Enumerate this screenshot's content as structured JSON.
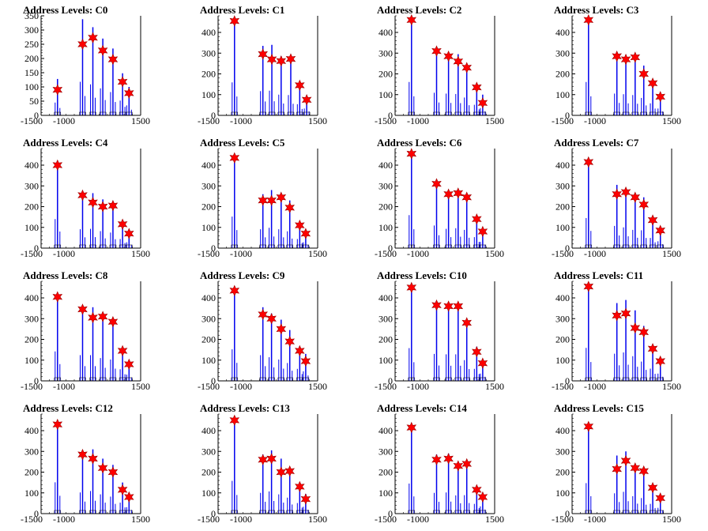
{
  "chart_data": [
    {
      "type": "bar",
      "title": "Address Levels: C0",
      "ylim": [
        0,
        350
      ],
      "yticks": [
        0,
        50,
        100,
        150,
        200,
        250,
        300,
        350
      ],
      "xlim": [
        -1500,
        1500
      ],
      "xticks": [
        -1500,
        -1000,
        1500
      ],
      "xtick_labels": [
        "-1500",
        "-1000",
        "1500"
      ],
      "peaks": [
        {
          "x": -1005,
          "y": 90,
          "h": 128
        },
        {
          "x": -250,
          "y": 250,
          "h": 338
        },
        {
          "x": 60,
          "y": 273,
          "h": 310
        },
        {
          "x": 360,
          "y": 228,
          "h": 270
        },
        {
          "x": 665,
          "y": 197,
          "h": 235
        },
        {
          "x": 955,
          "y": 118,
          "h": 148
        },
        {
          "x": 1150,
          "y": 78,
          "h": 100
        }
      ]
    },
    {
      "type": "bar",
      "title": "Address Levels: C1",
      "ylim": [
        0,
        480
      ],
      "yticks": [
        0,
        100,
        200,
        300,
        400
      ],
      "xlim": [
        -1500,
        1500
      ],
      "xticks": [
        -1500,
        -1000,
        1500
      ],
      "xtick_labels": [
        "-1500",
        "-1000",
        "1500"
      ],
      "peaks": [
        {
          "x": -1005,
          "y": 455,
          "h": 455
        },
        {
          "x": -150,
          "y": 295,
          "h": 335
        },
        {
          "x": 120,
          "y": 270,
          "h": 340
        },
        {
          "x": 400,
          "y": 262,
          "h": 285
        },
        {
          "x": 690,
          "y": 272,
          "h": 280
        },
        {
          "x": 960,
          "y": 145,
          "h": 155
        },
        {
          "x": 1170,
          "y": 75,
          "h": 95
        }
      ]
    },
    {
      "type": "bar",
      "title": "Address Levels: C2",
      "ylim": [
        0,
        480
      ],
      "yticks": [
        0,
        100,
        200,
        300,
        400
      ],
      "xlim": [
        -1500,
        1500
      ],
      "xticks": [
        -1500,
        -1000,
        1500
      ],
      "xtick_labels": [
        "-1500",
        "-1000",
        "1500"
      ],
      "peaks": [
        {
          "x": -1005,
          "y": 460,
          "h": 460
        },
        {
          "x": -250,
          "y": 310,
          "h": 310
        },
        {
          "x": 110,
          "y": 285,
          "h": 300
        },
        {
          "x": 400,
          "y": 260,
          "h": 295
        },
        {
          "x": 660,
          "y": 230,
          "h": 245
        },
        {
          "x": 960,
          "y": 135,
          "h": 145
        },
        {
          "x": 1140,
          "y": 60,
          "h": 100
        }
      ]
    },
    {
      "type": "bar",
      "title": "Address Levels: C3",
      "ylim": [
        0,
        480
      ],
      "yticks": [
        0,
        100,
        200,
        300,
        400
      ],
      "xlim": [
        -1500,
        1500
      ],
      "xticks": [
        -1500,
        -1000,
        1500
      ],
      "xtick_labels": [
        "-1500",
        "-1000",
        "1500"
      ],
      "peaks": [
        {
          "x": -1005,
          "y": 460,
          "h": 460
        },
        {
          "x": -150,
          "y": 285,
          "h": 300
        },
        {
          "x": 120,
          "y": 270,
          "h": 290
        },
        {
          "x": 400,
          "y": 280,
          "h": 280
        },
        {
          "x": 660,
          "y": 200,
          "h": 240
        },
        {
          "x": 930,
          "y": 155,
          "h": 165
        },
        {
          "x": 1160,
          "y": 90,
          "h": 95
        }
      ]
    },
    {
      "type": "bar",
      "title": "Address Levels: C4",
      "ylim": [
        0,
        480
      ],
      "yticks": [
        0,
        100,
        200,
        300,
        400
      ],
      "xlim": [
        -1500,
        1500
      ],
      "xticks": [
        -1500,
        -1000,
        1500
      ],
      "xtick_labels": [
        "-1500",
        "-1000",
        "1500"
      ],
      "peaks": [
        {
          "x": -1005,
          "y": 400,
          "h": 400
        },
        {
          "x": -250,
          "y": 255,
          "h": 260
        },
        {
          "x": 60,
          "y": 220,
          "h": 265
        },
        {
          "x": 360,
          "y": 200,
          "h": 235
        },
        {
          "x": 665,
          "y": 205,
          "h": 215
        },
        {
          "x": 955,
          "y": 115,
          "h": 125
        },
        {
          "x": 1150,
          "y": 70,
          "h": 80
        }
      ]
    },
    {
      "type": "bar",
      "title": "Address Levels: C5",
      "ylim": [
        0,
        480
      ],
      "yticks": [
        0,
        100,
        200,
        300,
        400
      ],
      "xlim": [
        -1500,
        1500
      ],
      "xticks": [
        -1500,
        -1000,
        1500
      ],
      "xtick_labels": [
        "-1500",
        "-1000",
        "1500"
      ],
      "peaks": [
        {
          "x": -1005,
          "y": 435,
          "h": 435
        },
        {
          "x": -150,
          "y": 230,
          "h": 260
        },
        {
          "x": 110,
          "y": 230,
          "h": 280
        },
        {
          "x": 400,
          "y": 245,
          "h": 260
        },
        {
          "x": 660,
          "y": 195,
          "h": 230
        },
        {
          "x": 960,
          "y": 110,
          "h": 125
        },
        {
          "x": 1140,
          "y": 70,
          "h": 80
        }
      ]
    },
    {
      "type": "bar",
      "title": "Address Levels: C6",
      "ylim": [
        0,
        480
      ],
      "yticks": [
        0,
        100,
        200,
        300,
        400
      ],
      "xlim": [
        -1500,
        1500
      ],
      "xticks": [
        -1500,
        -1000,
        1500
      ],
      "xtick_labels": [
        "-1500",
        "-1000",
        "1500"
      ],
      "peaks": [
        {
          "x": -1005,
          "y": 455,
          "h": 455
        },
        {
          "x": -250,
          "y": 310,
          "h": 310
        },
        {
          "x": 110,
          "y": 260,
          "h": 265
        },
        {
          "x": 400,
          "y": 265,
          "h": 275
        },
        {
          "x": 660,
          "y": 245,
          "h": 250
        },
        {
          "x": 960,
          "y": 140,
          "h": 150
        },
        {
          "x": 1140,
          "y": 80,
          "h": 85
        }
      ]
    },
    {
      "type": "bar",
      "title": "Address Levels: C7",
      "ylim": [
        0,
        480
      ],
      "yticks": [
        0,
        100,
        200,
        300,
        400
      ],
      "xlim": [
        -1500,
        1500
      ],
      "xticks": [
        -1500,
        -1000,
        1500
      ],
      "xtick_labels": [
        "-1500",
        "-1000",
        "1500"
      ],
      "peaks": [
        {
          "x": -1005,
          "y": 415,
          "h": 415
        },
        {
          "x": -150,
          "y": 260,
          "h": 305
        },
        {
          "x": 120,
          "y": 270,
          "h": 285
        },
        {
          "x": 400,
          "y": 245,
          "h": 250
        },
        {
          "x": 660,
          "y": 210,
          "h": 245
        },
        {
          "x": 930,
          "y": 135,
          "h": 140
        },
        {
          "x": 1160,
          "y": 85,
          "h": 95
        }
      ]
    },
    {
      "type": "bar",
      "title": "Address Levels: C8",
      "ylim": [
        0,
        480
      ],
      "yticks": [
        0,
        100,
        200,
        300,
        400
      ],
      "xlim": [
        -1500,
        1500
      ],
      "xticks": [
        -1500,
        -1000,
        1500
      ],
      "xtick_labels": [
        "-1500",
        "-1000",
        "1500"
      ],
      "peaks": [
        {
          "x": -1005,
          "y": 405,
          "h": 405
        },
        {
          "x": -250,
          "y": 345,
          "h": 355
        },
        {
          "x": 60,
          "y": 305,
          "h": 355
        },
        {
          "x": 360,
          "y": 310,
          "h": 315
        },
        {
          "x": 665,
          "y": 285,
          "h": 295
        },
        {
          "x": 955,
          "y": 145,
          "h": 160
        },
        {
          "x": 1150,
          "y": 80,
          "h": 85
        }
      ]
    },
    {
      "type": "bar",
      "title": "Address Levels: C9",
      "ylim": [
        0,
        480
      ],
      "yticks": [
        0,
        100,
        200,
        300,
        400
      ],
      "xlim": [
        -1500,
        1500
      ],
      "xticks": [
        -1500,
        -1000,
        1500
      ],
      "xtick_labels": [
        "-1500",
        "-1000",
        "1500"
      ],
      "peaks": [
        {
          "x": -1005,
          "y": 435,
          "h": 435
        },
        {
          "x": -150,
          "y": 320,
          "h": 355
        },
        {
          "x": 110,
          "y": 300,
          "h": 325
        },
        {
          "x": 400,
          "y": 250,
          "h": 295
        },
        {
          "x": 660,
          "y": 190,
          "h": 245
        },
        {
          "x": 960,
          "y": 145,
          "h": 165
        },
        {
          "x": 1140,
          "y": 95,
          "h": 130
        }
      ]
    },
    {
      "type": "bar",
      "title": "Address Levels: C10",
      "ylim": [
        0,
        480
      ],
      "yticks": [
        0,
        100,
        200,
        300,
        400
      ],
      "xlim": [
        -1500,
        1500
      ],
      "xticks": [
        -1500,
        -1000,
        1500
      ],
      "xtick_labels": [
        "-1500",
        "-1000",
        "1500"
      ],
      "peaks": [
        {
          "x": -1005,
          "y": 450,
          "h": 450
        },
        {
          "x": -250,
          "y": 365,
          "h": 370
        },
        {
          "x": 110,
          "y": 360,
          "h": 365
        },
        {
          "x": 400,
          "y": 360,
          "h": 365
        },
        {
          "x": 660,
          "y": 280,
          "h": 285
        },
        {
          "x": 960,
          "y": 140,
          "h": 165
        },
        {
          "x": 1140,
          "y": 85,
          "h": 100
        }
      ]
    },
    {
      "type": "bar",
      "title": "Address Levels: C11",
      "ylim": [
        0,
        480
      ],
      "yticks": [
        0,
        100,
        200,
        300,
        400
      ],
      "xlim": [
        -1500,
        1500
      ],
      "xticks": [
        -1500,
        -1000,
        1500
      ],
      "xtick_labels": [
        "-1500",
        "-1000",
        "1500"
      ],
      "peaks": [
        {
          "x": -1005,
          "y": 455,
          "h": 455
        },
        {
          "x": -150,
          "y": 315,
          "h": 375
        },
        {
          "x": 120,
          "y": 325,
          "h": 390
        },
        {
          "x": 400,
          "y": 255,
          "h": 340
        },
        {
          "x": 660,
          "y": 235,
          "h": 265
        },
        {
          "x": 930,
          "y": 155,
          "h": 170
        },
        {
          "x": 1160,
          "y": 95,
          "h": 100
        }
      ]
    },
    {
      "type": "bar",
      "title": "Address Levels: C12",
      "ylim": [
        0,
        480
      ],
      "yticks": [
        0,
        100,
        200,
        300,
        400
      ],
      "xlim": [
        -1500,
        1500
      ],
      "xticks": [
        -1500,
        -1000,
        1500
      ],
      "xtick_labels": [
        "-1500",
        "-1000",
        "1500"
      ],
      "peaks": [
        {
          "x": -1005,
          "y": 430,
          "h": 430
        },
        {
          "x": -250,
          "y": 285,
          "h": 290
        },
        {
          "x": 60,
          "y": 265,
          "h": 310
        },
        {
          "x": 360,
          "y": 220,
          "h": 265
        },
        {
          "x": 665,
          "y": 200,
          "h": 235
        },
        {
          "x": 955,
          "y": 115,
          "h": 150
        },
        {
          "x": 1150,
          "y": 80,
          "h": 90
        }
      ]
    },
    {
      "type": "bar",
      "title": "Address Levels: C13",
      "ylim": [
        0,
        480
      ],
      "yticks": [
        0,
        100,
        200,
        300,
        400
      ],
      "xlim": [
        -1500,
        1500
      ],
      "xticks": [
        -1500,
        -1000,
        1500
      ],
      "xtick_labels": [
        "-1500",
        "-1000",
        "1500"
      ],
      "peaks": [
        {
          "x": -1005,
          "y": 450,
          "h": 450
        },
        {
          "x": -150,
          "y": 260,
          "h": 285
        },
        {
          "x": 110,
          "y": 265,
          "h": 305
        },
        {
          "x": 400,
          "y": 200,
          "h": 265
        },
        {
          "x": 660,
          "y": 205,
          "h": 220
        },
        {
          "x": 960,
          "y": 130,
          "h": 145
        },
        {
          "x": 1140,
          "y": 70,
          "h": 95
        }
      ]
    },
    {
      "type": "bar",
      "title": "Address Levels: C14",
      "ylim": [
        0,
        480
      ],
      "yticks": [
        0,
        100,
        200,
        300,
        400
      ],
      "xlim": [
        -1500,
        1500
      ],
      "xticks": [
        -1500,
        -1000,
        1500
      ],
      "xtick_labels": [
        "-1500",
        "-1000",
        "1500"
      ],
      "peaks": [
        {
          "x": -1005,
          "y": 415,
          "h": 415
        },
        {
          "x": -250,
          "y": 260,
          "h": 285
        },
        {
          "x": 110,
          "y": 265,
          "h": 290
        },
        {
          "x": 400,
          "y": 230,
          "h": 250
        },
        {
          "x": 660,
          "y": 240,
          "h": 255
        },
        {
          "x": 960,
          "y": 115,
          "h": 135
        },
        {
          "x": 1140,
          "y": 80,
          "h": 100
        }
      ]
    },
    {
      "type": "bar",
      "title": "Address Levels: C15",
      "ylim": [
        0,
        480
      ],
      "yticks": [
        0,
        100,
        200,
        300,
        400
      ],
      "xlim": [
        -1500,
        1500
      ],
      "xticks": [
        -1500,
        -1000,
        1500
      ],
      "xtick_labels": [
        "-1500",
        "-1000",
        "1500"
      ],
      "peaks": [
        {
          "x": -1005,
          "y": 420,
          "h": 420
        },
        {
          "x": -150,
          "y": 215,
          "h": 280
        },
        {
          "x": 120,
          "y": 255,
          "h": 300
        },
        {
          "x": 400,
          "y": 220,
          "h": 240
        },
        {
          "x": 660,
          "y": 205,
          "h": 215
        },
        {
          "x": 930,
          "y": 125,
          "h": 135
        },
        {
          "x": 1160,
          "y": 75,
          "h": 80
        }
      ]
    }
  ],
  "colors": {
    "bars": "#0000ee",
    "markers": "#ff0000",
    "marker_edge": "#990000",
    "axes": "#000000"
  }
}
